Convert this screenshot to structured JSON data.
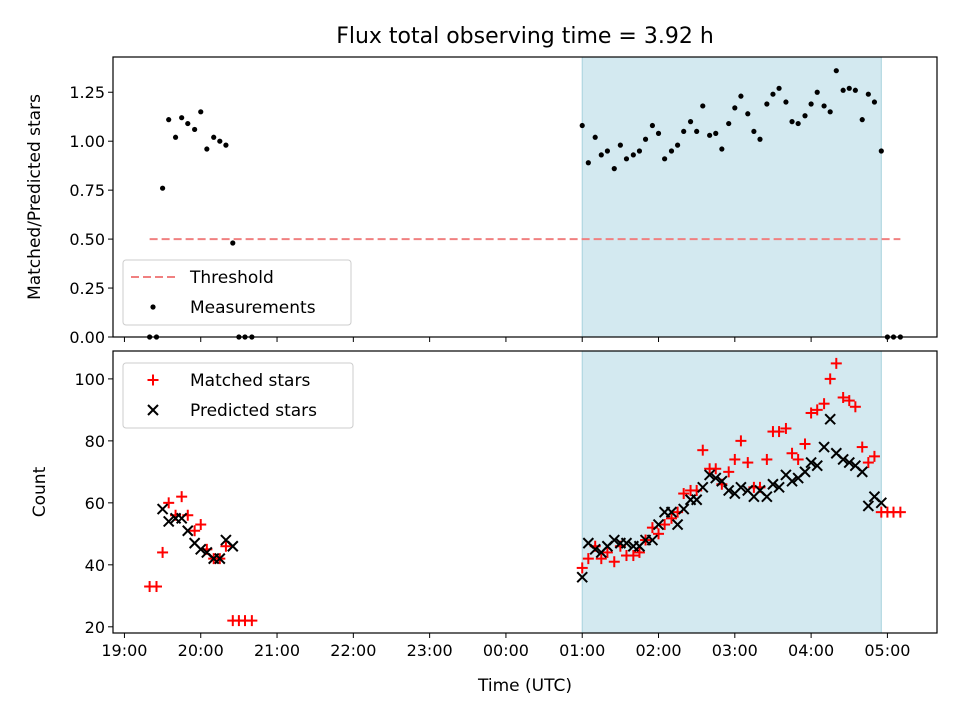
{
  "figure": {
    "title": "Flux total observing time = 3.92 h",
    "xlabel": "Time (UTC)",
    "x_ticks": [
      "19:00",
      "20:00",
      "21:00",
      "22:00",
      "23:00",
      "00:00",
      "01:00",
      "02:00",
      "03:00",
      "04:00",
      "05:00"
    ],
    "x_range_hours": [
      18.85,
      29.65
    ],
    "highlight_span_hours": [
      25.0,
      28.92
    ],
    "highlight_color": "#d3e9f0"
  },
  "chart_data": [
    {
      "type": "scatter",
      "ylabel": "Matched/Predicted stars",
      "ylim": [
        0,
        1.43
      ],
      "y_ticks": [
        "0.00",
        "0.25",
        "0.50",
        "0.75",
        "1.00",
        "1.25"
      ],
      "threshold": {
        "label": "Threshold",
        "value": 0.5,
        "x_range_hours": [
          19.33,
          29.17
        ],
        "color": "#f08080",
        "style": "dashed"
      },
      "legend": {
        "position": "lower-left",
        "entries": [
          "Threshold",
          "Measurements"
        ]
      },
      "series": [
        {
          "name": "Measurements",
          "color": "#000000",
          "points": [
            [
              19.33,
              0.0
            ],
            [
              19.42,
              0.0
            ],
            [
              19.5,
              0.76
            ],
            [
              19.58,
              1.11
            ],
            [
              19.67,
              1.02
            ],
            [
              19.75,
              1.12
            ],
            [
              19.83,
              1.09
            ],
            [
              19.92,
              1.06
            ],
            [
              20.0,
              1.15
            ],
            [
              20.08,
              0.96
            ],
            [
              20.17,
              1.02
            ],
            [
              20.25,
              1.0
            ],
            [
              20.33,
              0.98
            ],
            [
              20.42,
              0.48
            ],
            [
              20.5,
              0.0
            ],
            [
              20.58,
              0.0
            ],
            [
              20.67,
              0.0
            ],
            [
              25.0,
              1.08
            ],
            [
              25.08,
              0.89
            ],
            [
              25.17,
              1.02
            ],
            [
              25.25,
              0.93
            ],
            [
              25.33,
              0.95
            ],
            [
              25.42,
              0.86
            ],
            [
              25.5,
              0.98
            ],
            [
              25.58,
              0.91
            ],
            [
              25.67,
              0.93
            ],
            [
              25.75,
              0.95
            ],
            [
              25.83,
              1.01
            ],
            [
              25.92,
              1.08
            ],
            [
              26.0,
              1.04
            ],
            [
              26.08,
              0.91
            ],
            [
              26.17,
              0.95
            ],
            [
              26.25,
              0.98
            ],
            [
              26.33,
              1.05
            ],
            [
              26.42,
              1.1
            ],
            [
              26.5,
              1.05
            ],
            [
              26.58,
              1.18
            ],
            [
              26.67,
              1.03
            ],
            [
              26.75,
              1.04
            ],
            [
              26.83,
              0.96
            ],
            [
              26.92,
              1.09
            ],
            [
              27.0,
              1.17
            ],
            [
              27.08,
              1.23
            ],
            [
              27.17,
              1.14
            ],
            [
              27.25,
              1.05
            ],
            [
              27.33,
              1.01
            ],
            [
              27.42,
              1.19
            ],
            [
              27.5,
              1.24
            ],
            [
              27.58,
              1.27
            ],
            [
              27.67,
              1.2
            ],
            [
              27.75,
              1.1
            ],
            [
              27.83,
              1.09
            ],
            [
              27.92,
              1.13
            ],
            [
              28.0,
              1.19
            ],
            [
              28.08,
              1.25
            ],
            [
              28.17,
              1.18
            ],
            [
              28.25,
              1.15
            ],
            [
              28.33,
              1.36
            ],
            [
              28.42,
              1.26
            ],
            [
              28.5,
              1.27
            ],
            [
              28.58,
              1.26
            ],
            [
              28.67,
              1.11
            ],
            [
              28.75,
              1.24
            ],
            [
              28.83,
              1.2
            ],
            [
              28.92,
              0.95
            ],
            [
              29.0,
              0.0
            ],
            [
              29.08,
              0.0
            ],
            [
              29.17,
              0.0
            ]
          ]
        }
      ]
    },
    {
      "type": "scatter",
      "ylabel": "Count",
      "ylim": [
        18,
        109
      ],
      "y_ticks": [
        "20",
        "40",
        "60",
        "80",
        "100"
      ],
      "legend": {
        "position": "upper-left",
        "entries": [
          "Matched stars",
          "Predicted stars"
        ]
      },
      "series": [
        {
          "name": "Matched stars",
          "marker": "+",
          "color": "#ff0000",
          "points": [
            [
              19.33,
              33
            ],
            [
              19.42,
              33
            ],
            [
              19.5,
              44
            ],
            [
              19.58,
              60
            ],
            [
              19.67,
              56
            ],
            [
              19.75,
              62
            ],
            [
              19.83,
              56
            ],
            [
              19.92,
              51
            ],
            [
              20.0,
              53
            ],
            [
              20.08,
              45
            ],
            [
              20.17,
              42
            ],
            [
              20.25,
              42
            ],
            [
              20.33,
              46
            ],
            [
              20.42,
              22
            ],
            [
              20.5,
              22
            ],
            [
              20.58,
              22
            ],
            [
              20.67,
              22
            ],
            [
              25.0,
              39
            ],
            [
              25.08,
              42
            ],
            [
              25.17,
              46
            ],
            [
              25.25,
              42
            ],
            [
              25.33,
              44
            ],
            [
              25.42,
              41
            ],
            [
              25.5,
              46
            ],
            [
              25.58,
              43
            ],
            [
              25.67,
              43
            ],
            [
              25.75,
              44
            ],
            [
              25.83,
              48
            ],
            [
              25.92,
              52
            ],
            [
              26.0,
              50
            ],
            [
              26.08,
              53
            ],
            [
              26.17,
              55
            ],
            [
              26.25,
              57
            ],
            [
              26.33,
              63
            ],
            [
              26.42,
              64
            ],
            [
              26.5,
              64
            ],
            [
              26.58,
              77
            ],
            [
              26.67,
              71
            ],
            [
              26.75,
              71
            ],
            [
              26.83,
              66
            ],
            [
              26.92,
              70
            ],
            [
              27.0,
              74
            ],
            [
              27.08,
              80
            ],
            [
              27.17,
              73
            ],
            [
              27.25,
              65
            ],
            [
              27.33,
              65
            ],
            [
              27.42,
              74
            ],
            [
              27.5,
              83
            ],
            [
              27.58,
              83
            ],
            [
              27.67,
              84
            ],
            [
              27.75,
              76
            ],
            [
              27.83,
              74
            ],
            [
              27.92,
              79
            ],
            [
              28.0,
              89
            ],
            [
              28.08,
              90
            ],
            [
              28.17,
              92
            ],
            [
              28.25,
              100
            ],
            [
              28.33,
              105
            ],
            [
              28.42,
              94
            ],
            [
              28.5,
              93
            ],
            [
              28.58,
              91
            ],
            [
              28.67,
              78
            ],
            [
              28.75,
              73
            ],
            [
              28.83,
              75
            ],
            [
              28.92,
              57
            ],
            [
              29.0,
              57
            ],
            [
              29.08,
              57
            ],
            [
              29.17,
              57
            ]
          ]
        },
        {
          "name": "Predicted stars",
          "marker": "x",
          "color": "#000000",
          "points": [
            [
              19.5,
              58
            ],
            [
              19.58,
              54
            ],
            [
              19.67,
              55
            ],
            [
              19.75,
              55
            ],
            [
              19.83,
              51
            ],
            [
              19.92,
              47
            ],
            [
              20.0,
              45
            ],
            [
              20.08,
              44
            ],
            [
              20.17,
              42
            ],
            [
              20.25,
              42
            ],
            [
              20.33,
              48
            ],
            [
              20.42,
              46
            ],
            [
              25.0,
              36
            ],
            [
              25.08,
              47
            ],
            [
              25.17,
              45
            ],
            [
              25.25,
              44
            ],
            [
              25.33,
              46
            ],
            [
              25.42,
              48
            ],
            [
              25.5,
              47
            ],
            [
              25.58,
              47
            ],
            [
              25.67,
              46
            ],
            [
              25.75,
              46
            ],
            [
              25.83,
              48
            ],
            [
              25.92,
              48
            ],
            [
              26.0,
              53
            ],
            [
              26.08,
              57
            ],
            [
              26.17,
              57
            ],
            [
              26.25,
              53
            ],
            [
              26.33,
              58
            ],
            [
              26.42,
              61
            ],
            [
              26.5,
              61
            ],
            [
              26.58,
              65
            ],
            [
              26.67,
              69
            ],
            [
              26.75,
              68
            ],
            [
              26.83,
              67
            ],
            [
              26.92,
              64
            ],
            [
              27.0,
              63
            ],
            [
              27.08,
              65
            ],
            [
              27.17,
              64
            ],
            [
              27.25,
              62
            ],
            [
              27.33,
              64
            ],
            [
              27.42,
              62
            ],
            [
              27.5,
              66
            ],
            [
              27.58,
              65
            ],
            [
              27.67,
              69
            ],
            [
              27.75,
              67
            ],
            [
              27.83,
              68
            ],
            [
              27.92,
              70
            ],
            [
              28.0,
              73
            ],
            [
              28.08,
              72
            ],
            [
              28.17,
              78
            ],
            [
              28.25,
              87
            ],
            [
              28.33,
              76
            ],
            [
              28.42,
              74
            ],
            [
              28.5,
              73
            ],
            [
              28.58,
              72
            ],
            [
              28.67,
              70
            ],
            [
              28.75,
              59
            ],
            [
              28.83,
              62
            ],
            [
              28.92,
              60
            ]
          ]
        }
      ]
    }
  ]
}
